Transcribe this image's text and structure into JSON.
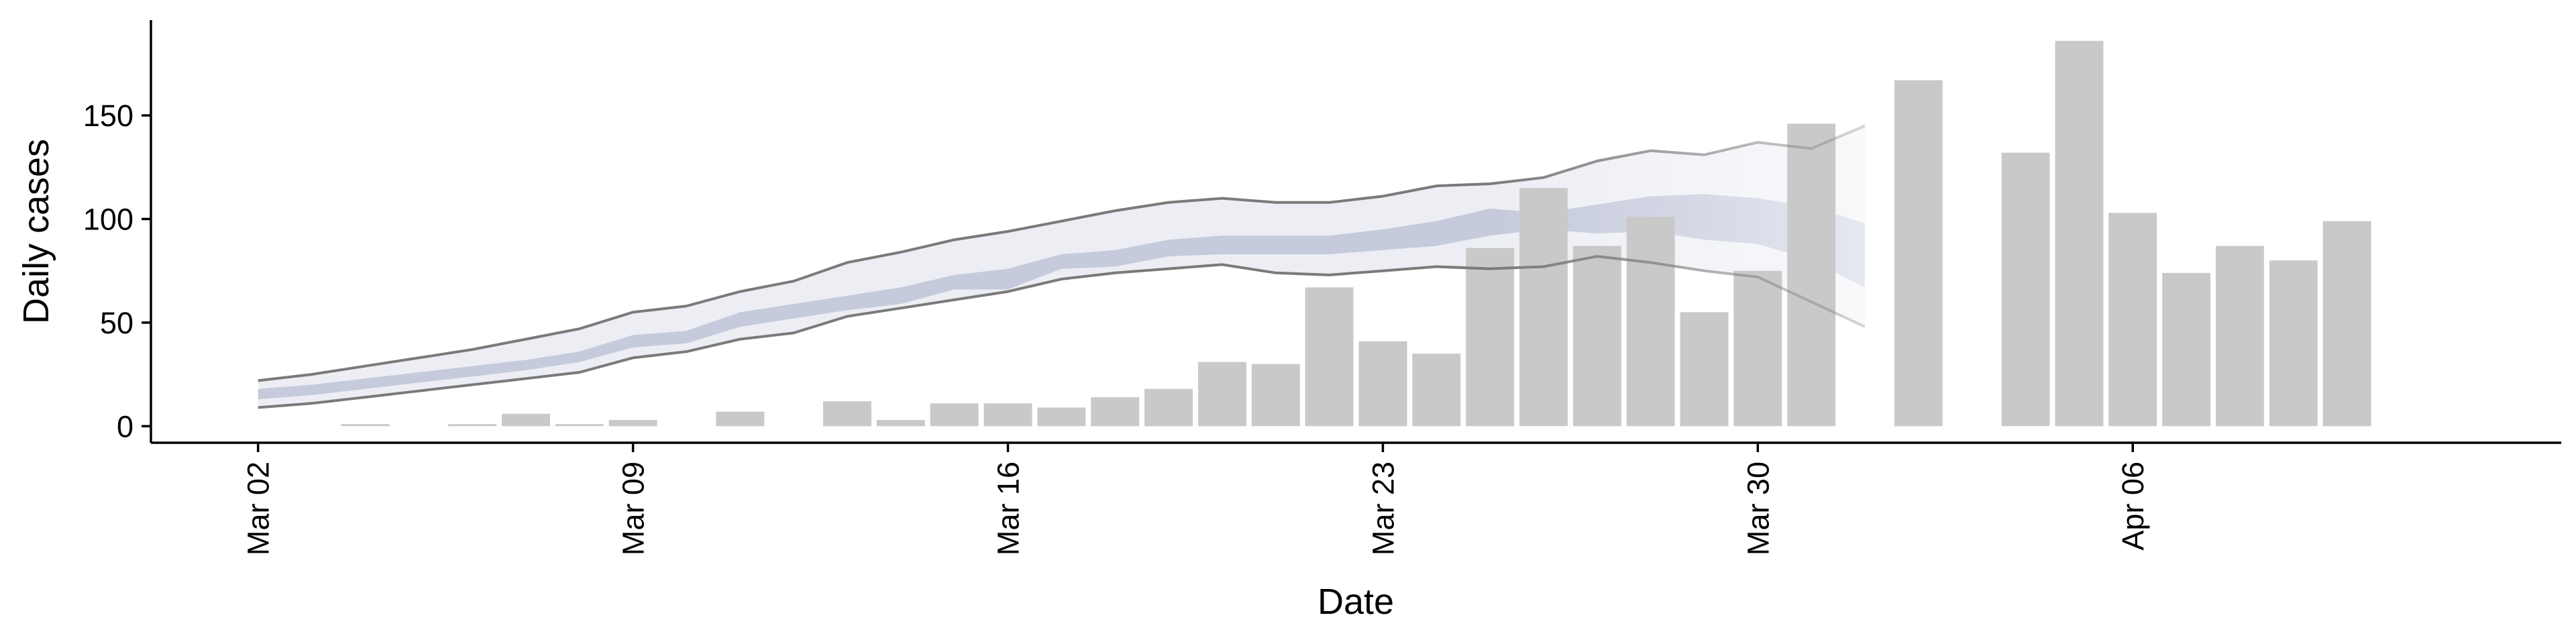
{
  "chart_data": {
    "type": "bar",
    "title": "",
    "xlabel": "Date",
    "ylabel": "Daily cases",
    "ylim": [
      -8,
      196
    ],
    "y_ticks": [
      0,
      50,
      100,
      150
    ],
    "x_ticks": [
      "2020-03-02",
      "2020-03-09",
      "2020-03-16",
      "2020-03-23",
      "2020-03-30",
      "2020-04-06"
    ],
    "x_tick_labels": [
      "Mar 02",
      "Mar 09",
      "Mar 16",
      "Mar 23",
      "Mar 30",
      "Apr 06"
    ],
    "x_range": [
      "2020-02-29",
      "2020-04-14"
    ],
    "grid": false,
    "legend": "none",
    "colors": {
      "bars": "#c9c9c9",
      "bounds_line": "#7a7a7a",
      "outer_band": "#eceef4",
      "inner_band": "#c5cadc"
    },
    "bars": {
      "dates": [
        "2020-03-02",
        "2020-03-03",
        "2020-03-04",
        "2020-03-05",
        "2020-03-06",
        "2020-03-07",
        "2020-03-08",
        "2020-03-09",
        "2020-03-10",
        "2020-03-11",
        "2020-03-12",
        "2020-03-13",
        "2020-03-14",
        "2020-03-15",
        "2020-03-16",
        "2020-03-17",
        "2020-03-18",
        "2020-03-19",
        "2020-03-20",
        "2020-03-21",
        "2020-03-22",
        "2020-03-23",
        "2020-03-24",
        "2020-03-25",
        "2020-03-26",
        "2020-03-27",
        "2020-03-28",
        "2020-03-29",
        "2020-03-30",
        "2020-03-31",
        "2020-04-01",
        "2020-04-02",
        "2020-04-03",
        "2020-04-04",
        "2020-04-05",
        "2020-04-06",
        "2020-04-07",
        "2020-04-08",
        "2020-04-09",
        "2020-04-10"
      ],
      "values": [
        0,
        0,
        1,
        0,
        1,
        6,
        1,
        3,
        0,
        7,
        0,
        12,
        3,
        11,
        11,
        9,
        14,
        18,
        31,
        30,
        67,
        41,
        35,
        86,
        115,
        87,
        101,
        55,
        75,
        146,
        0,
        167,
        0,
        132,
        186,
        103,
        74,
        87,
        80,
        99
      ]
    },
    "forecast": {
      "dates": [
        "2020-03-02",
        "2020-03-03",
        "2020-03-04",
        "2020-03-05",
        "2020-03-06",
        "2020-03-07",
        "2020-03-08",
        "2020-03-09",
        "2020-03-10",
        "2020-03-11",
        "2020-03-12",
        "2020-03-13",
        "2020-03-14",
        "2020-03-15",
        "2020-03-16",
        "2020-03-17",
        "2020-03-18",
        "2020-03-19",
        "2020-03-20",
        "2020-03-21",
        "2020-03-22",
        "2020-03-23",
        "2020-03-24",
        "2020-03-25",
        "2020-03-26",
        "2020-03-27",
        "2020-03-28",
        "2020-03-29",
        "2020-03-30",
        "2020-03-31",
        "2020-04-01"
      ],
      "lower_90": [
        9,
        11,
        14,
        17,
        20,
        23,
        26,
        33,
        36,
        42,
        45,
        53,
        57,
        61,
        65,
        71,
        74,
        76,
        78,
        74,
        73,
        75,
        77,
        76,
        77,
        82,
        79,
        75,
        72,
        60,
        48
      ],
      "upper_90": [
        22,
        25,
        29,
        33,
        37,
        42,
        47,
        55,
        58,
        65,
        70,
        79,
        84,
        90,
        94,
        99,
        104,
        108,
        110,
        108,
        108,
        111,
        116,
        117,
        120,
        128,
        133,
        131,
        137,
        134,
        145
      ],
      "lower_50": [
        13,
        15,
        18,
        21,
        24,
        27,
        31,
        38,
        40,
        48,
        52,
        56,
        59,
        66,
        66,
        76,
        77,
        82,
        83,
        83,
        83,
        85,
        87,
        92,
        95,
        93,
        94,
        90,
        88,
        80,
        67
      ],
      "upper_50": [
        18,
        20,
        23,
        26,
        29,
        32,
        36,
        44,
        46,
        55,
        59,
        63,
        67,
        73,
        76,
        83,
        85,
        90,
        92,
        92,
        92,
        95,
        99,
        105,
        103,
        107,
        111,
        112,
        110,
        106,
        98
      ]
    }
  }
}
